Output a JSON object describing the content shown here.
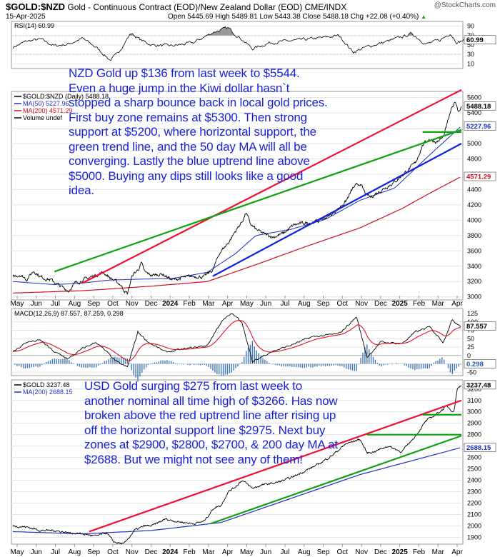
{
  "header": {
    "symbol": "$GOLD:$NZD",
    "description": "Gold - Continuous Contract (EOD)/New Zealand Dollar (EOD)",
    "exchange": "CME/INDX",
    "date": "15-Apr-2025",
    "ohlc": "Open 5445.69  High 5489.81  Low 5443.38  Close 5488.18  Chg +22.08 (+0.40%)",
    "up_arrow": "▲",
    "brand": "@StockCharts.com"
  },
  "annotations": {
    "nzd": "NZD Gold up $136 from last week to $5544. Even a huge jump in the Kiwi dollar hasn`t stopped a sharp bounce back in local gold prices. First buy zone remains at $5300. Then strong support at $5200, where horizontal support, the green trend line, and the 50 day MA will all be converging. Lastly the blue uptrend line above $5000. Buying any dips still looks like a good idea.",
    "usd": "USD Gold surging $275 from last week to another nominal all time high of $3266. Has now broken above the red uptrend line after rising up off the horizontal support line $2975. Next buy zones at $2900, $2800, $2700, & 200 day MA at $2688. But we might not see any of them!"
  },
  "colors": {
    "price": "#000000",
    "ma50": "#2030c0",
    "ma200": "#cc1020",
    "rsi_fill": "#808080",
    "red_trend": "#ee1133",
    "green_trend": "#10a010",
    "blue_trend": "#1020dd",
    "macd": "#000000",
    "signal": "#dd1122",
    "histogram": "#2060b0",
    "annotation": "#1a22d8"
  },
  "chart_data": [
    {
      "type": "line",
      "name": "rsi_panel",
      "legend": "RSI(14) 60.99",
      "last_value": "60.99",
      "y_ticks": [
        "90",
        "70",
        "50",
        "30",
        "10"
      ],
      "ylim": [
        0,
        100
      ],
      "reference_lines": [
        70,
        30
      ],
      "keypoints": [
        [
          0,
          45
        ],
        [
          20,
          58
        ],
        [
          40,
          62
        ],
        [
          60,
          48
        ],
        [
          80,
          52
        ],
        [
          100,
          64
        ],
        [
          120,
          45
        ],
        [
          140,
          18
        ],
        [
          150,
          30
        ],
        [
          170,
          75
        ],
        [
          185,
          60
        ],
        [
          200,
          50
        ],
        [
          230,
          48
        ],
        [
          260,
          55
        ],
        [
          290,
          78
        ],
        [
          310,
          86
        ],
        [
          330,
          62
        ],
        [
          345,
          42
        ],
        [
          370,
          55
        ],
        [
          410,
          60
        ],
        [
          450,
          66
        ],
        [
          470,
          70
        ],
        [
          490,
          35
        ],
        [
          510,
          46
        ],
        [
          545,
          60
        ],
        [
          575,
          74
        ],
        [
          595,
          52
        ],
        [
          615,
          60
        ],
        [
          630,
          75
        ],
        [
          640,
          55
        ],
        [
          650,
          61
        ]
      ]
    },
    {
      "type": "line",
      "name": "nzd_gold_price",
      "title": "$GOLD:$NZD (Daily) 5488.18",
      "legend": [
        "$GOLD:$NZD (Daily) 5488.18",
        "MA(50) 5227.96",
        "MA(200) 4571.29",
        "Volume undef"
      ],
      "y_ticks": [
        "5600",
        "5400",
        "5200",
        "5000",
        "4800",
        "4600",
        "4400",
        "4200",
        "4000",
        "3800",
        "3600",
        "3400",
        "3200",
        "3000"
      ],
      "ylim": [
        2960,
        5680
      ],
      "x_ticks": [
        "May",
        "Jun",
        "Jul",
        "Aug",
        "Sep",
        "Oct",
        "Nov",
        "Dec",
        "2024",
        "Feb",
        "Mar",
        "Apr",
        "May",
        "Jun",
        "Jul",
        "Aug",
        "Sep",
        "Oct",
        "Nov",
        "Dec",
        "2025",
        "Feb",
        "Mar",
        "Apr"
      ],
      "value_badges": [
        "5488.18",
        "5227.96",
        "4571.29"
      ],
      "price_keypoints": [
        [
          0,
          3260
        ],
        [
          10,
          3290
        ],
        [
          20,
          3230
        ],
        [
          30,
          3340
        ],
        [
          40,
          3260
        ],
        [
          55,
          3220
        ],
        [
          70,
          3130
        ],
        [
          80,
          3080
        ],
        [
          90,
          3180
        ],
        [
          110,
          3250
        ],
        [
          130,
          3320
        ],
        [
          140,
          3250
        ],
        [
          155,
          3160
        ],
        [
          160,
          3090
        ],
        [
          165,
          3040
        ],
        [
          172,
          3280
        ],
        [
          180,
          3350
        ],
        [
          185,
          3440
        ],
        [
          190,
          3320
        ],
        [
          200,
          3280
        ],
        [
          215,
          3300
        ],
        [
          230,
          3220
        ],
        [
          245,
          3250
        ],
        [
          260,
          3270
        ],
        [
          275,
          3260
        ],
        [
          288,
          3350
        ],
        [
          298,
          3580
        ],
        [
          310,
          3700
        ],
        [
          320,
          3850
        ],
        [
          330,
          3980
        ],
        [
          336,
          4100
        ],
        [
          342,
          3950
        ],
        [
          350,
          3880
        ],
        [
          362,
          3820
        ],
        [
          375,
          3780
        ],
        [
          390,
          3830
        ],
        [
          405,
          3940
        ],
        [
          420,
          3960
        ],
        [
          440,
          3990
        ],
        [
          460,
          4080
        ],
        [
          480,
          4250
        ],
        [
          490,
          4420
        ],
        [
          500,
          4480
        ],
        [
          508,
          4340
        ],
        [
          515,
          4300
        ],
        [
          530,
          4390
        ],
        [
          550,
          4500
        ],
        [
          565,
          4620
        ],
        [
          580,
          4750
        ],
        [
          590,
          4980
        ],
        [
          600,
          5060
        ],
        [
          610,
          5020
        ],
        [
          620,
          5080
        ],
        [
          630,
          5400
        ],
        [
          637,
          5560
        ],
        [
          642,
          5420
        ],
        [
          646,
          5490
        ]
      ],
      "ma50_keypoints": [
        [
          0,
          3200
        ],
        [
          60,
          3160
        ],
        [
          100,
          3180
        ],
        [
          140,
          3220
        ],
        [
          180,
          3230
        ],
        [
          230,
          3240
        ],
        [
          280,
          3320
        ],
        [
          320,
          3560
        ],
        [
          350,
          3800
        ],
        [
          400,
          3880
        ],
        [
          450,
          4010
        ],
        [
          500,
          4260
        ],
        [
          550,
          4420
        ],
        [
          600,
          4850
        ],
        [
          646,
          5228
        ]
      ],
      "ma200_keypoints": [
        [
          0,
          3050
        ],
        [
          100,
          3080
        ],
        [
          200,
          3140
        ],
        [
          280,
          3200
        ],
        [
          350,
          3420
        ],
        [
          420,
          3650
        ],
        [
          500,
          3900
        ],
        [
          560,
          4150
        ],
        [
          600,
          4350
        ],
        [
          646,
          4571
        ]
      ],
      "trendlines": [
        {
          "color": "red",
          "from": [
            100,
            3180
          ],
          "to": [
            646,
            5700
          ]
        },
        {
          "color": "green",
          "from": [
            60,
            3330
          ],
          "to": [
            646,
            5180
          ]
        },
        {
          "color": "blue",
          "from": [
            288,
            3270
          ],
          "to": [
            646,
            5000
          ]
        },
        {
          "color": "green",
          "from": [
            590,
            5150
          ],
          "to": [
            646,
            5150
          ]
        }
      ]
    },
    {
      "type": "line",
      "name": "macd_panel",
      "legend": "MACD(12,26,9) 87.557, 87.259, 0.298",
      "y_ticks": [
        "125",
        "100",
        "75",
        "50",
        "25",
        "0",
        "-25",
        "-50"
      ],
      "value_badges": [
        "87.557",
        "0.298"
      ],
      "ylim": [
        -60,
        140
      ],
      "macd_keypoints": [
        [
          0,
          10
        ],
        [
          20,
          40
        ],
        [
          40,
          45
        ],
        [
          60,
          10
        ],
        [
          80,
          -10
        ],
        [
          100,
          20
        ],
        [
          120,
          40
        ],
        [
          150,
          -20
        ],
        [
          165,
          -35
        ],
        [
          180,
          70
        ],
        [
          195,
          40
        ],
        [
          220,
          10
        ],
        [
          250,
          20
        ],
        [
          280,
          30
        ],
        [
          300,
          100
        ],
        [
          315,
          125
        ],
        [
          330,
          100
        ],
        [
          345,
          -20
        ],
        [
          370,
          10
        ],
        [
          400,
          30
        ],
        [
          430,
          55
        ],
        [
          470,
          65
        ],
        [
          495,
          115
        ],
        [
          510,
          -5
        ],
        [
          530,
          40
        ],
        [
          560,
          35
        ],
        [
          580,
          70
        ],
        [
          600,
          85
        ],
        [
          620,
          40
        ],
        [
          632,
          105
        ],
        [
          646,
          88
        ]
      ]
    },
    {
      "type": "line",
      "name": "usd_gold_price",
      "title": "$GOLD 3237.48",
      "legend": [
        "$GOLD 3237.48",
        "MA(200) 2688.15"
      ],
      "y_ticks": [
        "3200",
        "3100",
        "3000",
        "2900",
        "2800",
        "2700",
        "2600",
        "2500",
        "2400",
        "2300",
        "2200",
        "2100",
        "2000",
        "1900"
      ],
      "ylim": [
        1840,
        3280
      ],
      "x_ticks": [
        "May",
        "Jun",
        "Jul",
        "Aug",
        "Sep",
        "Oct",
        "Nov",
        "Dec",
        "2024",
        "Feb",
        "Mar",
        "Apr",
        "May",
        "Jun",
        "Jul",
        "Aug",
        "Sep",
        "Oct",
        "Nov",
        "Dec",
        "2025",
        "Feb",
        "Mar",
        "Apr"
      ],
      "value_badges": [
        "3237.48",
        "2688.15"
      ],
      "price_keypoints": [
        [
          0,
          2000
        ],
        [
          20,
          1990
        ],
        [
          40,
          1960
        ],
        [
          60,
          1960
        ],
        [
          80,
          1940
        ],
        [
          100,
          1930
        ],
        [
          120,
          1910
        ],
        [
          135,
          1940
        ],
        [
          145,
          1860
        ],
        [
          160,
          1840
        ],
        [
          175,
          1960
        ],
        [
          190,
          2000
        ],
        [
          200,
          2000
        ],
        [
          220,
          2060
        ],
        [
          235,
          2040
        ],
        [
          260,
          2020
        ],
        [
          275,
          2040
        ],
        [
          290,
          2160
        ],
        [
          300,
          2180
        ],
        [
          310,
          2300
        ],
        [
          320,
          2340
        ],
        [
          330,
          2400
        ],
        [
          345,
          2330
        ],
        [
          360,
          2360
        ],
        [
          380,
          2380
        ],
        [
          400,
          2420
        ],
        [
          420,
          2480
        ],
        [
          440,
          2540
        ],
        [
          460,
          2620
        ],
        [
          480,
          2720
        ],
        [
          500,
          2760
        ],
        [
          510,
          2640
        ],
        [
          520,
          2650
        ],
        [
          540,
          2700
        ],
        [
          560,
          2650
        ],
        [
          580,
          2790
        ],
        [
          595,
          2920
        ],
        [
          610,
          2980
        ],
        [
          625,
          3050
        ],
        [
          635,
          3000
        ],
        [
          640,
          3200
        ],
        [
          646,
          3237
        ]
      ],
      "ma200_keypoints": [
        [
          0,
          1950
        ],
        [
          100,
          1930
        ],
        [
          200,
          1960
        ],
        [
          300,
          2030
        ],
        [
          400,
          2240
        ],
        [
          500,
          2450
        ],
        [
          580,
          2580
        ],
        [
          646,
          2688
        ]
      ],
      "trendlines": [
        {
          "color": "red",
          "from": [
            110,
            1950
          ],
          "to": [
            646,
            3100
          ]
        },
        {
          "color": "green",
          "from": [
            285,
            2020
          ],
          "to": [
            646,
            2790
          ]
        },
        {
          "color": "green",
          "from": [
            510,
            2800
          ],
          "to": [
            646,
            2800
          ]
        },
        {
          "color": "green",
          "from": [
            590,
            2975
          ],
          "to": [
            646,
            2975
          ]
        }
      ]
    }
  ]
}
